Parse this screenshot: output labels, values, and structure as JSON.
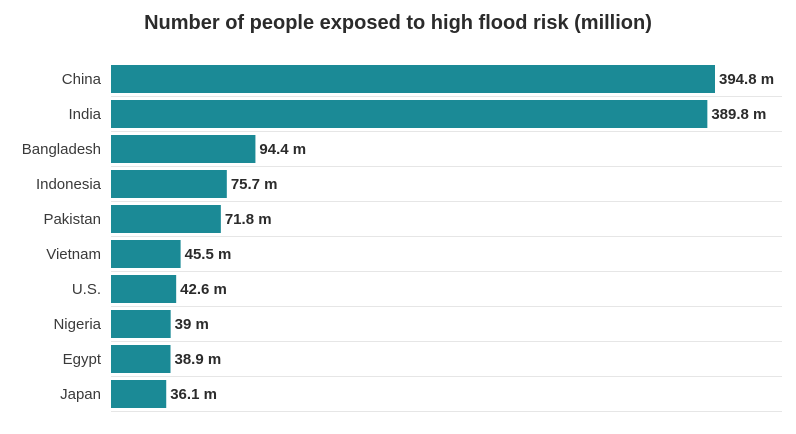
{
  "chart_data": {
    "type": "bar",
    "orientation": "horizontal",
    "title": "Number of people exposed to high flood risk (million)",
    "categories": [
      "China",
      "India",
      "Bangladesh",
      "Indonesia",
      "Pakistan",
      "Vietnam",
      "U.S.",
      "Nigeria",
      "Egypt",
      "Japan"
    ],
    "values": [
      394.8,
      389.8,
      94.4,
      75.7,
      71.8,
      45.5,
      42.6,
      39,
      38.9,
      36.1
    ],
    "value_labels": [
      "394.8 m",
      "389.8 m",
      "94.4 m",
      "75.7 m",
      "71.8 m",
      "45.5 m",
      "42.6 m",
      "39 m",
      "38.9 m",
      "36.1 m"
    ],
    "xlabel": "",
    "ylabel": "",
    "xlim": [
      0,
      394.8
    ],
    "grid": true,
    "bar_color": "#1b8a96",
    "grid_color": "#e6e6e6"
  }
}
